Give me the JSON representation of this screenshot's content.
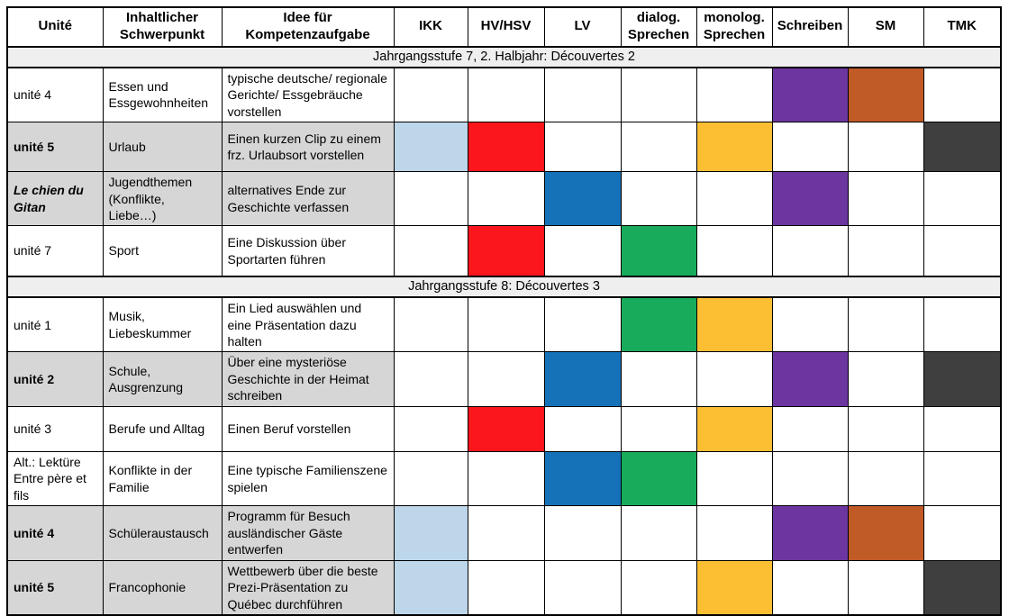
{
  "table": {
    "headers": [
      {
        "key": "unit",
        "label": "Unité"
      },
      {
        "key": "schwerpunkt",
        "label": "Inhaltlicher Schwerpunkt"
      },
      {
        "key": "idee",
        "label": "Idee für Kompetenzaufgabe"
      },
      {
        "key": "ikk",
        "label": "IKK"
      },
      {
        "key": "hv_hsv",
        "label": "HV/HSV"
      },
      {
        "key": "lv",
        "label": "LV"
      },
      {
        "key": "dialog_sprechen",
        "label": "dialog. Sprechen"
      },
      {
        "key": "monolog_sprechen",
        "label": "monolog. Sprechen"
      },
      {
        "key": "schreiben",
        "label": "Schreiben"
      },
      {
        "key": "sm",
        "label": "SM"
      },
      {
        "key": "tmk",
        "label": "TMK"
      }
    ],
    "competence_columns": [
      "ikk",
      "hv_hsv",
      "lv",
      "dialog_sprechen",
      "monolog_sprechen",
      "schreiben",
      "sm",
      "tmk"
    ],
    "colors": {
      "light_blue": "#BDD6EA",
      "red": "#FB151C",
      "blue": "#1572B8",
      "green": "#17AB5B",
      "yellow": "#FCBF33",
      "purple": "#6C35A0",
      "brown": "#C05A26",
      "dark_gray": "#3F3F3F",
      "row_shade": "#D6D6D6",
      "section_shade": "#EFEFEF"
    },
    "sections": [
      {
        "title": "Jahrgangsstufe 7, 2. Halbjahr: Découvertes 2",
        "rows": [
          {
            "unit": "unité 4",
            "bold": false,
            "italic": false,
            "shaded": false,
            "schwerpunkt": "Essen und Essgewohnheiten",
            "idee": "typische deutsche/ regionale Gerichte/ Essgebräuche vorstellen",
            "marks": {
              "schreiben": "purple",
              "sm": "brown"
            }
          },
          {
            "unit": "unité 5",
            "bold": true,
            "italic": false,
            "shaded": true,
            "schwerpunkt": "Urlaub",
            "idee": "Einen kurzen Clip zu einem frz. Urlaubsort vorstellen",
            "marks": {
              "ikk": "light_blue",
              "hv_hsv": "red",
              "monolog_sprechen": "yellow",
              "tmk": "dark_gray"
            }
          },
          {
            "unit": "Le chien du Gitan",
            "bold": true,
            "italic": true,
            "shaded": true,
            "schwerpunkt": "Jugendthemen (Konflikte, Liebe…)",
            "idee": "alternatives Ende zur Geschichte verfassen",
            "marks": {
              "lv": "blue",
              "schreiben": "purple"
            }
          },
          {
            "unit": "unité 7",
            "bold": false,
            "italic": false,
            "shaded": false,
            "schwerpunkt": "Sport",
            "idee": "Eine Diskussion über Sportarten führen",
            "marks": {
              "hv_hsv": "red",
              "dialog_sprechen": "green"
            }
          }
        ]
      },
      {
        "title": "Jahrgangsstufe 8: Découvertes 3",
        "rows": [
          {
            "unit": "unité 1",
            "bold": false,
            "italic": false,
            "shaded": false,
            "schwerpunkt": "Musik, Liebeskummer",
            "idee": "Ein Lied auswählen und eine Präsentation dazu halten",
            "marks": {
              "dialog_sprechen": "green",
              "monolog_sprechen": "yellow"
            }
          },
          {
            "unit": "unité 2",
            "bold": true,
            "italic": false,
            "shaded": true,
            "schwerpunkt": "Schule, Ausgrenzung",
            "idee": "Über eine mysteriöse Geschichte in der Heimat schreiben",
            "marks": {
              "lv": "blue",
              "schreiben": "purple",
              "tmk": "dark_gray"
            }
          },
          {
            "unit": "unité 3",
            "bold": false,
            "italic": false,
            "shaded": false,
            "schwerpunkt": "Berufe und Alltag",
            "idee": "Einen Beruf vorstellen",
            "marks": {
              "hv_hsv": "red",
              "monolog_sprechen": "yellow"
            }
          },
          {
            "unit": "Alt.: Lektüre Entre père et fils",
            "bold": false,
            "italic": false,
            "shaded": false,
            "schwerpunkt": "Konflikte in der Familie",
            "idee": "Eine typische Familienszene spielen",
            "marks": {
              "lv": "blue",
              "dialog_sprechen": "green"
            }
          },
          {
            "unit": "unité 4",
            "bold": true,
            "italic": false,
            "shaded": true,
            "schwerpunkt": "Schüleraustausch",
            "idee": "Programm für Besuch ausländischer Gäste entwerfen",
            "marks": {
              "ikk": "light_blue",
              "schreiben": "purple",
              "sm": "brown"
            }
          },
          {
            "unit": "unité 5",
            "bold": true,
            "italic": false,
            "shaded": true,
            "schwerpunkt": "Francophonie",
            "idee": "Wettbewerb über die beste Prezi-Präsentation zu Québec durchführen",
            "marks": {
              "ikk": "light_blue",
              "monolog_sprechen": "yellow",
              "tmk": "dark_gray"
            }
          }
        ]
      }
    ]
  }
}
